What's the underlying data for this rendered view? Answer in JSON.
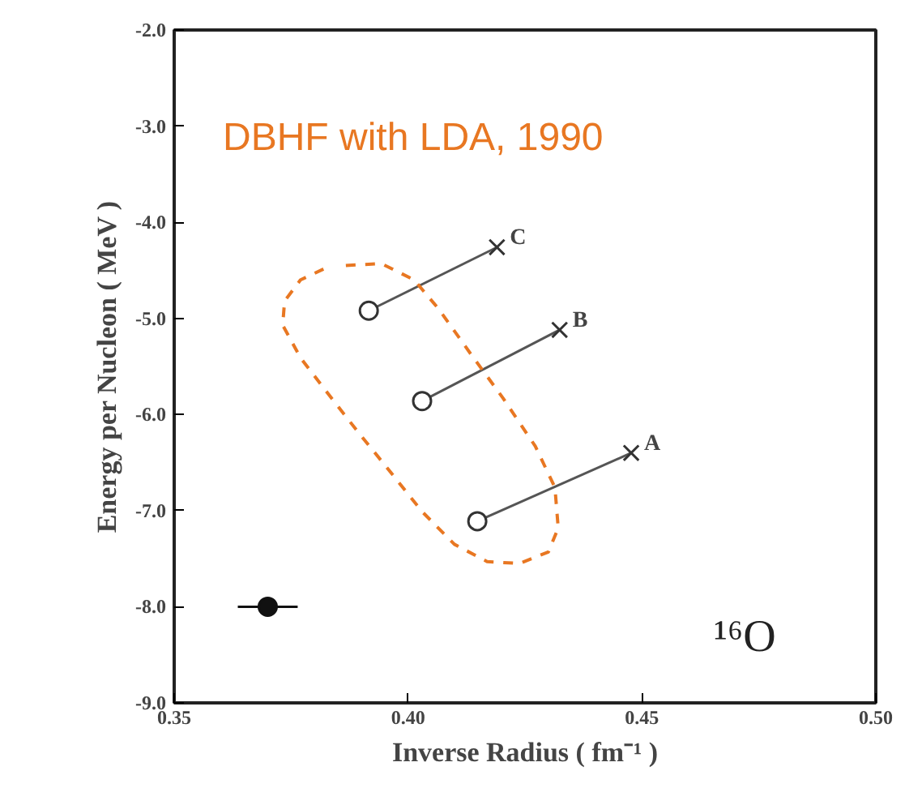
{
  "chart_data": {
    "type": "scatter",
    "xlabel": "Inverse Radius ( fm⁻¹ )",
    "ylabel": "Energy per Nucleon ( MeV )",
    "xlim": [
      0.35,
      0.5
    ],
    "xticks": [
      0.35,
      {
        "value": 0.4,
        "label": "0.40"
      },
      0.45,
      {
        "value": 0.5,
        "label": "0.50"
      }
    ],
    "ylim": [
      -9.0,
      -2.0
    ],
    "yticks": [
      {
        "value": -9,
        "label": "-9.0"
      },
      {
        "value": -8,
        "label": "-8.0"
      },
      {
        "value": -7,
        "label": "-7.0"
      },
      {
        "value": -6,
        "label": "-6.0"
      },
      {
        "value": -5,
        "label": "-5.0"
      },
      {
        "value": -4,
        "label": "-4.0"
      },
      {
        "value": -3,
        "label": "-3.0"
      },
      {
        "value": -2,
        "label": "-2.0"
      }
    ],
    "grid": false,
    "series": [
      {
        "name": "C",
        "type": "line",
        "color": "#555555",
        "x": [
          0.3916,
          0.419
        ],
        "values": [
          -4.92,
          -4.26
        ]
      },
      {
        "name": "B",
        "type": "line",
        "color": "#555555",
        "x": [
          0.403,
          0.4324
        ],
        "values": [
          -5.86,
          -5.12
        ]
      },
      {
        "name": "A",
        "type": "line",
        "color": "#555555",
        "x": [
          0.4148,
          0.4477
        ],
        "values": [
          -7.11,
          -6.4
        ]
      },
      {
        "type": "line",
        "line_style": "dashed",
        "color": "#e87722",
        "x": [
          0.3867,
          0.3943,
          0.4013,
          0.4065,
          0.4134,
          0.4203,
          0.4272,
          0.4314,
          0.4321,
          0.43,
          0.4238,
          0.4169,
          0.4099,
          0.403,
          0.3961,
          0.3891,
          0.3822,
          0.377,
          0.3732,
          0.3736,
          0.377,
          0.3822
        ],
        "values": [
          -4.45,
          -4.43,
          -4.6,
          -4.9,
          -5.37,
          -5.83,
          -6.33,
          -6.76,
          -7.18,
          -7.43,
          -7.55,
          -7.53,
          -7.35,
          -7.01,
          -6.59,
          -6.17,
          -5.74,
          -5.41,
          -5.07,
          -4.82,
          -4.6,
          -4.48
        ]
      },
      {
        "marker": "circle",
        "color": "#333333",
        "x": [
          0.3916,
          0.403,
          0.4148
        ],
        "values": [
          -4.92,
          -5.86,
          -7.11
        ]
      },
      {
        "marker": "cross",
        "color": "#333333",
        "x": [
          0.419,
          0.4324,
          0.4477
        ],
        "values": [
          -4.26,
          -5.12,
          -6.4
        ]
      },
      {
        "marker": "circle",
        "color": "#111111",
        "x": [
          0.37
        ],
        "values": [
          -8.0
        ],
        "xerrors": [
          0.0064
        ]
      }
    ],
    "annotations": [
      "DBHF with LDA, 1990",
      "¹⁶O"
    ]
  }
}
